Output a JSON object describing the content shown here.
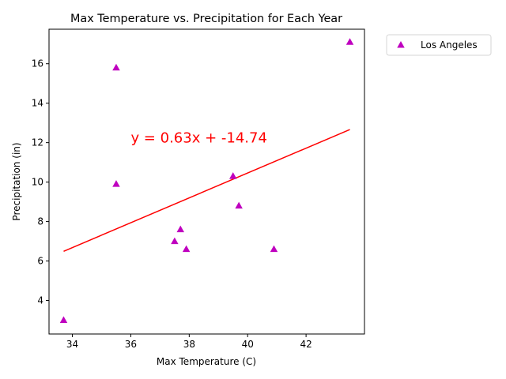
{
  "chart_data": {
    "type": "scatter",
    "title": "Max Temperature vs. Precipitation for Each Year",
    "xlabel": "Max Temperature (C)",
    "ylabel": "Precipitation (in)",
    "xlim": [
      33.2,
      44.0
    ],
    "ylim": [
      2.3,
      17.75
    ],
    "xticks": [
      34,
      36,
      38,
      40,
      42
    ],
    "yticks": [
      4,
      6,
      8,
      10,
      12,
      14,
      16
    ],
    "grid": false,
    "legend_position": "outside-top-right",
    "series": [
      {
        "name": "Los Angeles",
        "marker": "triangle",
        "color": "#bf00bf",
        "points": [
          {
            "x": 33.7,
            "y": 3.0
          },
          {
            "x": 35.5,
            "y": 15.8
          },
          {
            "x": 35.5,
            "y": 9.9
          },
          {
            "x": 37.5,
            "y": 7.0
          },
          {
            "x": 37.7,
            "y": 7.6
          },
          {
            "x": 37.9,
            "y": 6.6
          },
          {
            "x": 39.5,
            "y": 10.3
          },
          {
            "x": 39.7,
            "y": 8.8
          },
          {
            "x": 40.9,
            "y": 6.6
          },
          {
            "x": 43.5,
            "y": 17.1
          }
        ]
      }
    ],
    "regression": {
      "slope": 0.63,
      "intercept": -14.74,
      "x_range": [
        33.7,
        43.5
      ],
      "color": "#ff0000",
      "equation_text": "y = 0.63x + -14.74",
      "equation_anchor": {
        "x": 36.0,
        "y": 12.0
      }
    }
  }
}
